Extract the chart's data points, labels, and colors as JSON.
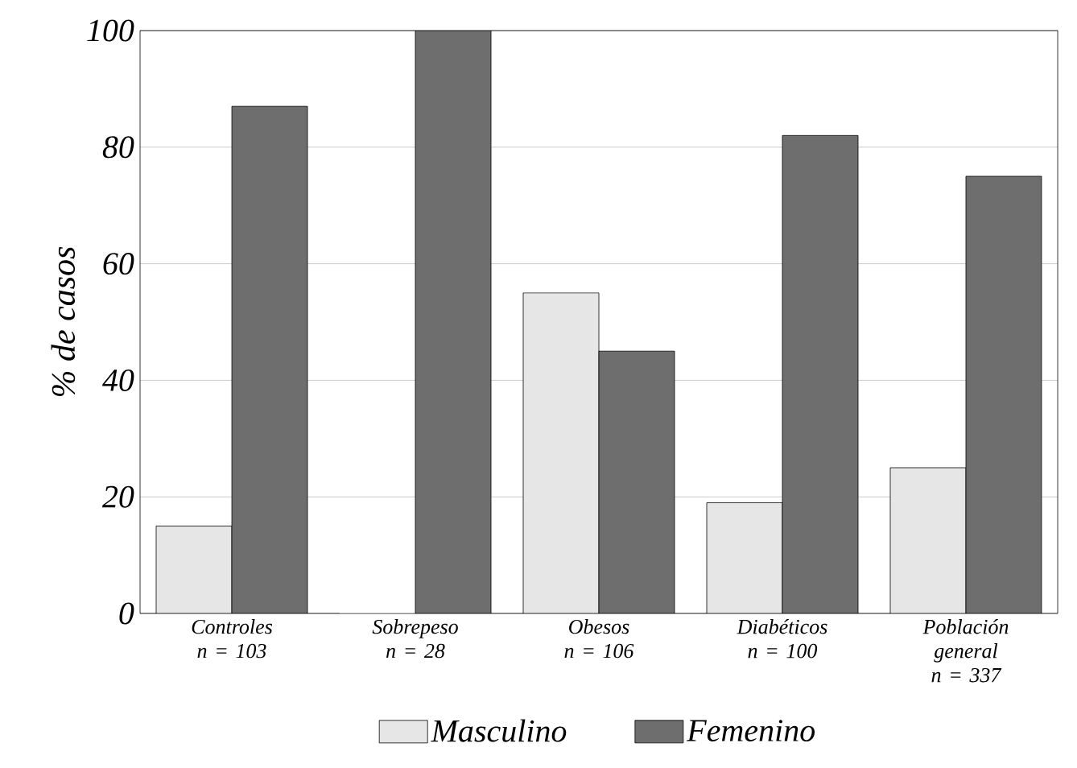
{
  "chart_data": {
    "type": "bar",
    "ylabel": "% de casos",
    "categories": [
      "Controles n = 103",
      "Sobrepeso n = 28",
      "Obesos n = 106",
      "Diabéticos n = 100",
      "Población general n = 337"
    ],
    "series": [
      {
        "name": "Masculino",
        "color": "#e6e6e6",
        "values": [
          15,
          0,
          55,
          19,
          25
        ]
      },
      {
        "name": "Femenino",
        "color": "#6e6e6e",
        "values": [
          87,
          100,
          45,
          82,
          75
        ]
      }
    ],
    "ylim": [
      0,
      100
    ],
    "yticks": [
      0,
      20,
      40,
      60,
      80,
      100
    ],
    "grid": "y",
    "legend": "bottom"
  }
}
